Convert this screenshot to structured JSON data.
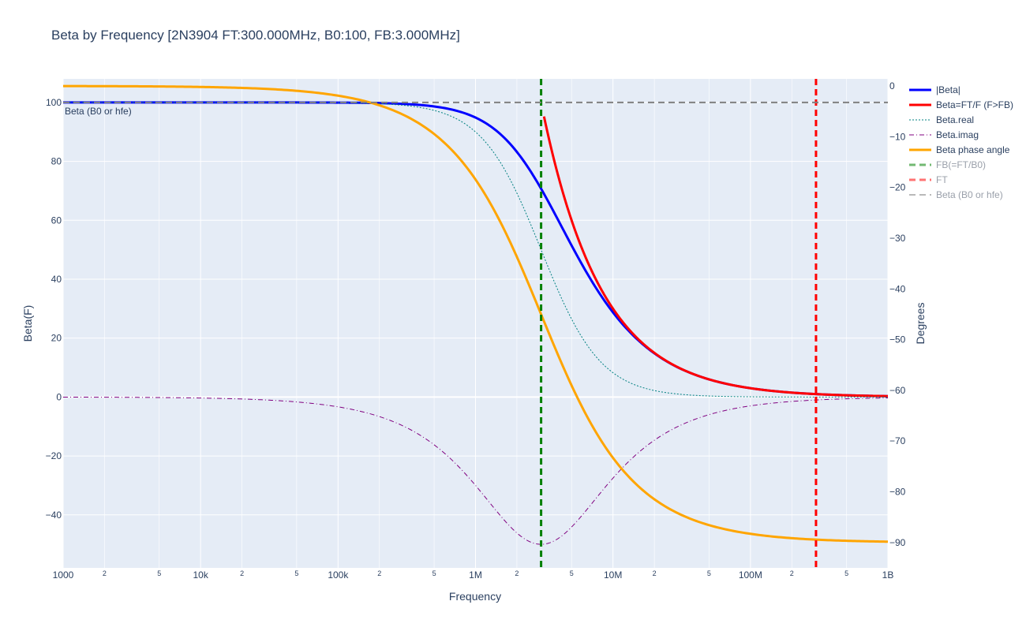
{
  "chart_data": {
    "type": "line",
    "title": "Beta by Frequency [2N3904 FT:300.000MHz, B0:100, FB:3.000MHz]",
    "xlabel": "Frequency",
    "ylabel": "Beta(F)",
    "y2label": "Degrees",
    "x_scale": "log",
    "xlim": [
      1000,
      1000000000
    ],
    "ylim": [
      -58,
      108
    ],
    "y2lim": [
      -95,
      1.4
    ],
    "x_ticks": [
      {
        "v": 1000,
        "label": "1000",
        "major": true
      },
      {
        "v": 2000,
        "label": "2",
        "major": false
      },
      {
        "v": 5000,
        "label": "5",
        "major": false
      },
      {
        "v": 10000,
        "label": "10k",
        "major": true
      },
      {
        "v": 20000,
        "label": "2",
        "major": false
      },
      {
        "v": 50000,
        "label": "5",
        "major": false
      },
      {
        "v": 100000,
        "label": "100k",
        "major": true
      },
      {
        "v": 200000,
        "label": "2",
        "major": false
      },
      {
        "v": 500000,
        "label": "5",
        "major": false
      },
      {
        "v": 1000000,
        "label": "1M",
        "major": true
      },
      {
        "v": 2000000,
        "label": "2",
        "major": false
      },
      {
        "v": 5000000,
        "label": "5",
        "major": false
      },
      {
        "v": 10000000,
        "label": "10M",
        "major": true
      },
      {
        "v": 20000000,
        "label": "2",
        "major": false
      },
      {
        "v": 50000000,
        "label": "5",
        "major": false
      },
      {
        "v": 100000000,
        "label": "100M",
        "major": true
      },
      {
        "v": 200000000,
        "label": "2",
        "major": false
      },
      {
        "v": 500000000,
        "label": "5",
        "major": false
      },
      {
        "v": 1000000000,
        "label": "1B",
        "major": true
      }
    ],
    "y_ticks": [
      {
        "v": 100,
        "label": "100"
      },
      {
        "v": 80,
        "label": "80"
      },
      {
        "v": 60,
        "label": "60"
      },
      {
        "v": 40,
        "label": "40"
      },
      {
        "v": 20,
        "label": "20"
      },
      {
        "v": 0,
        "label": "0"
      },
      {
        "v": -20,
        "label": "−20"
      },
      {
        "v": -40,
        "label": "−40"
      }
    ],
    "y2_ticks": [
      {
        "v": 0,
        "label": "0"
      },
      {
        "v": -10,
        "label": "−10"
      },
      {
        "v": -20,
        "label": "−20"
      },
      {
        "v": -30,
        "label": "−30"
      },
      {
        "v": -40,
        "label": "−40"
      },
      {
        "v": -50,
        "label": "−50"
      },
      {
        "v": -60,
        "label": "−60"
      },
      {
        "v": -70,
        "label": "−70"
      },
      {
        "v": -80,
        "label": "−80"
      },
      {
        "v": -90,
        "label": "−90"
      }
    ],
    "model": {
      "B0": 100,
      "FB": 3000000,
      "FT": 300000000
    },
    "series": [
      {
        "name": "|Beta|",
        "kind": "abs",
        "axis": "y",
        "color": "#0000ff",
        "width": 3,
        "dash": "solid",
        "visible": true
      },
      {
        "name": "Beta=FT/F (F>FB)",
        "kind": "ftf",
        "axis": "y",
        "color": "#ff0000",
        "width": 3,
        "dash": "solid",
        "visible": true
      },
      {
        "name": "Beta.real",
        "kind": "real",
        "axis": "y",
        "color": "#008080",
        "width": 1,
        "dash": "2,2",
        "visible": true
      },
      {
        "name": "Beta.imag",
        "kind": "imag",
        "axis": "y",
        "color": "#800080",
        "width": 1,
        "dash": "6,3,1,3",
        "visible": true
      },
      {
        "name": "Beta phase angle",
        "kind": "phase",
        "axis": "y2",
        "color": "#ffa500",
        "width": 3,
        "dash": "solid",
        "visible": true
      },
      {
        "name": "FB(=FT/B0)",
        "kind": "vline",
        "x": 3000000,
        "color": "#008000",
        "width": 3,
        "dash": "8,5",
        "visible": true
      },
      {
        "name": "FT",
        "kind": "vline",
        "x": 300000000,
        "color": "#ff0000",
        "width": 3,
        "dash": "8,5",
        "visible": true
      },
      {
        "name": "Beta (B0 or hfe)",
        "kind": "hline",
        "y": 100,
        "color": "#808080",
        "width": 2,
        "dash": "8,5",
        "visible": true
      }
    ],
    "legend_dim": [
      "FB(=FT/B0)",
      "FT",
      "Beta (B0 or hfe)"
    ],
    "annotations": [
      {
        "text": "Beta (B0 or hfe)",
        "x": 1000,
        "y": 100
      }
    ],
    "grid": true,
    "legend_position": "right",
    "colors": {
      "plot_bg": "#e5ecf6",
      "grid": "#ffffff",
      "text": "#2a3f5f"
    }
  }
}
